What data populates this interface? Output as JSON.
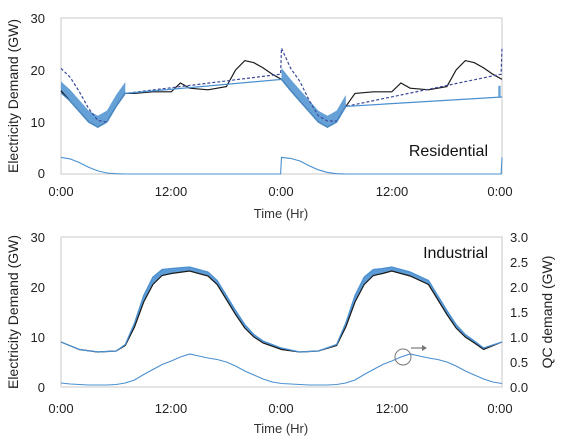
{
  "chart_data": [
    {
      "type": "line",
      "title": "Residential",
      "xlabel": "Time (Hr)",
      "ylabel": "Electricity Demand (GW)",
      "xlim": [
        0,
        48
      ],
      "ylim": [
        0,
        30
      ],
      "yticks": [
        0,
        10,
        20,
        30
      ],
      "x_tick_labels": [
        "0:00",
        "12:00",
        "0:00",
        "12:00",
        "0:00"
      ],
      "series": [
        {
          "role": "base-demand",
          "style": "solid",
          "color": "#1a1a1a",
          "x": [
            0,
            1,
            2,
            3,
            4,
            5,
            6,
            7,
            8,
            10,
            12,
            13,
            14,
            16,
            18,
            19,
            20,
            21,
            22,
            23,
            24,
            25,
            26,
            27,
            28,
            29,
            30,
            31,
            32,
            34,
            36,
            37,
            38,
            40,
            42,
            43,
            44,
            45,
            46,
            47,
            48
          ],
          "y": [
            16,
            14,
            12,
            10,
            9,
            10,
            13,
            15.5,
            15.5,
            15.8,
            15.8,
            17.5,
            16.5,
            16.2,
            16.8,
            20,
            21.8,
            21.4,
            20.4,
            19.2,
            18.2,
            16,
            14,
            12,
            10,
            9,
            10,
            13,
            15.5,
            15.8,
            15.8,
            17.5,
            16.5,
            16.2,
            16.8,
            20,
            21.8,
            21.4,
            20.4,
            19.2,
            18.2
          ]
        },
        {
          "role": "with-charging-upper",
          "style": "dashed",
          "color": "#3a4a9a",
          "x": [
            0,
            1,
            2,
            3,
            4,
            5,
            6,
            7,
            23.9,
            24,
            25,
            26,
            27,
            28,
            29,
            30,
            31,
            47.9,
            48
          ],
          "y": [
            20.3,
            18.6,
            15.8,
            12.6,
            10.3,
            10,
            13,
            15.5,
            19.2,
            24.2,
            20.3,
            17.8,
            14.2,
            11.2,
            10.2,
            10.2,
            13,
            19.2,
            24.2
          ]
        },
        {
          "role": "with-charging-lower",
          "style": "band",
          "color": "#4a90d0",
          "x": [
            0,
            1,
            2,
            3,
            4,
            5,
            6,
            7,
            24,
            25,
            26,
            27,
            28,
            29,
            30,
            31,
            48
          ],
          "y": [
            15.6,
            14,
            12,
            10,
            9,
            10,
            13,
            15.5,
            18.2,
            16,
            14,
            12,
            10,
            9,
            10,
            13,
            14.8
          ]
        },
        {
          "role": "qc-demand",
          "style": "thin",
          "color": "#4a90d0",
          "x": [
            0,
            1,
            2,
            3,
            4,
            5,
            6,
            7,
            20,
            23.9,
            24,
            25,
            26,
            27,
            28,
            29,
            30,
            31,
            44,
            47.9,
            48
          ],
          "y": [
            3.2,
            2.9,
            2.2,
            1.3,
            0.6,
            0.2,
            0.05,
            0,
            0,
            0,
            3.2,
            3,
            2.5,
            1.6,
            0.8,
            0.3,
            0.05,
            0,
            0,
            0,
            3.2
          ]
        }
      ]
    },
    {
      "type": "line",
      "title": "Industrial",
      "xlabel": "Time (Hr)",
      "ylabel": "Electricity Demand (GW)",
      "y2label": "QC demand (GW)",
      "xlim": [
        0,
        48
      ],
      "ylim": [
        0,
        30
      ],
      "y2lim": [
        0,
        3
      ],
      "yticks": [
        0,
        10,
        20,
        30
      ],
      "y2ticks": [
        "0.0",
        "0.5",
        "1.0",
        "1.5",
        "2.0",
        "2.5",
        "3.0"
      ],
      "x_tick_labels": [
        "0:00",
        "12:00",
        "0:00",
        "12:00",
        "0:00"
      ],
      "series": [
        {
          "role": "base-demand",
          "style": "solid",
          "color": "#1a1a1a",
          "x": [
            0,
            2,
            4,
            6,
            7,
            8,
            9,
            10,
            11,
            12,
            14,
            16,
            17,
            18,
            19,
            20,
            21,
            22,
            24,
            26,
            28,
            30,
            31,
            32,
            33,
            34,
            35,
            36,
            38,
            40,
            41,
            42,
            43,
            44,
            45,
            46,
            48
          ],
          "y": [
            9,
            7.5,
            7,
            7.2,
            8.3,
            12,
            17,
            20.5,
            22.3,
            22.7,
            23.2,
            22.2,
            20.5,
            17.5,
            14.5,
            11.8,
            10,
            8.8,
            7.5,
            7,
            7.2,
            8.3,
            12,
            17,
            20.5,
            22.3,
            22.7,
            23.2,
            22.2,
            20.5,
            17.5,
            14.5,
            11.8,
            10,
            8.8,
            7.5,
            9
          ]
        },
        {
          "role": "with-charging-upper",
          "style": "band",
          "color": "#4a90d0",
          "x": [
            0,
            2,
            4,
            6,
            7,
            8,
            9,
            10,
            11,
            12,
            14,
            16,
            17,
            18,
            19,
            20,
            21,
            22,
            24,
            26,
            28,
            30,
            31,
            32,
            33,
            34,
            35,
            36,
            38,
            40,
            41,
            42,
            43,
            44,
            45,
            46,
            48
          ],
          "y": [
            9,
            7.5,
            7,
            7.2,
            8.5,
            12.8,
            18.3,
            22,
            23.5,
            23.7,
            24,
            23,
            21.3,
            18.3,
            15.3,
            12.5,
            10.5,
            9.2,
            7.8,
            7,
            7.2,
            8.5,
            12.8,
            18.3,
            22,
            23.5,
            23.7,
            24,
            23,
            21.3,
            18.3,
            15.3,
            12.5,
            10.5,
            9.2,
            7.8,
            9
          ]
        },
        {
          "role": "qc-demand",
          "axis": "y2",
          "style": "thin",
          "color": "#4a90d0",
          "x": [
            0,
            1,
            2,
            3,
            4,
            5,
            6,
            7,
            8,
            9,
            10,
            11,
            12,
            13,
            14,
            15,
            16,
            17,
            18,
            19,
            20,
            21,
            22,
            23,
            24,
            25,
            26,
            27,
            28,
            29,
            30,
            31,
            32,
            33,
            34,
            35,
            36,
            37,
            38,
            39,
            40,
            41,
            42,
            43,
            44,
            45,
            46,
            47,
            48
          ],
          "y": [
            0.08,
            0.06,
            0.05,
            0.04,
            0.04,
            0.04,
            0.05,
            0.08,
            0.14,
            0.25,
            0.35,
            0.45,
            0.52,
            0.6,
            0.66,
            0.62,
            0.58,
            0.55,
            0.5,
            0.42,
            0.32,
            0.24,
            0.16,
            0.1,
            0.07,
            0.06,
            0.05,
            0.04,
            0.04,
            0.04,
            0.05,
            0.08,
            0.14,
            0.25,
            0.35,
            0.45,
            0.52,
            0.6,
            0.66,
            0.62,
            0.58,
            0.55,
            0.5,
            0.42,
            0.32,
            0.24,
            0.16,
            0.1,
            0.07
          ]
        }
      ]
    }
  ]
}
